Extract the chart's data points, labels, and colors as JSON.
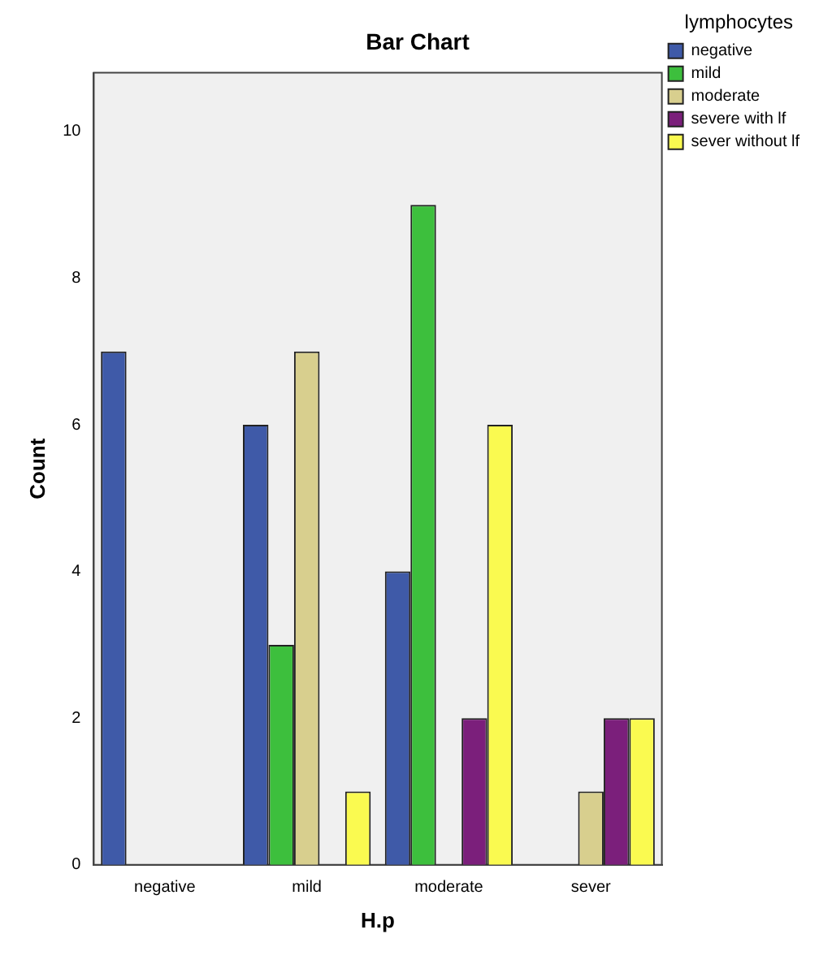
{
  "chart_data": {
    "type": "bar",
    "title": "Bar Chart",
    "xlabel": "H.p",
    "ylabel": "Count",
    "legend_title": "lymphocytes",
    "categories": [
      "negative",
      "mild",
      "moderate",
      "sever"
    ],
    "series": [
      {
        "name": "negative",
        "color": "#3f5aa8",
        "values": [
          7,
          6,
          4,
          null
        ]
      },
      {
        "name": "mild",
        "color": "#3dbf3d",
        "values": [
          null,
          3,
          9,
          null
        ]
      },
      {
        "name": "moderate",
        "color": "#d8cf8e",
        "values": [
          null,
          7,
          null,
          1
        ]
      },
      {
        "name": "severe with lf",
        "color": "#7b1f7b",
        "values": [
          null,
          null,
          2,
          2
        ]
      },
      {
        "name": "sever without lf",
        "color": "#fafa50",
        "values": [
          null,
          1,
          6,
          2
        ]
      }
    ],
    "ylim": [
      0,
      10.8
    ],
    "yticks": [
      0,
      2,
      4,
      6,
      8,
      10
    ],
    "grid": false,
    "legend": "top right"
  }
}
